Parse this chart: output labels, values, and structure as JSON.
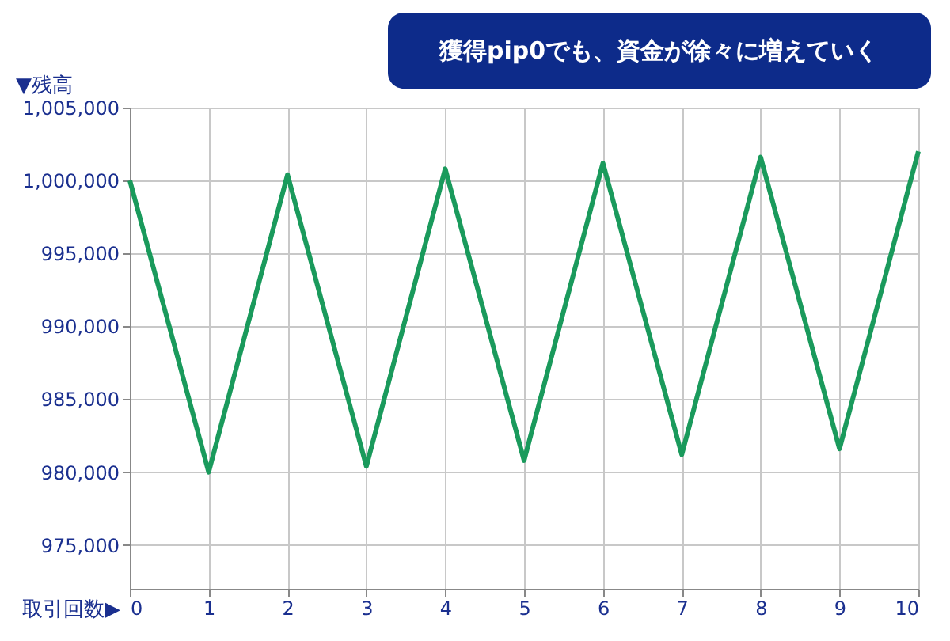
{
  "chart_data": {
    "type": "line",
    "xlabel": "取引回数▶",
    "ylabel": "▼残高",
    "x": [
      0,
      1,
      2,
      3,
      4,
      5,
      6,
      7,
      8,
      9,
      10
    ],
    "series": [
      {
        "color": "#1a9a5c",
        "values": [
          1000000,
          980000,
          1000400,
          980400,
          1000800,
          980800,
          1001200,
          981200,
          1001600,
          981600,
          1002000
        ]
      }
    ],
    "xlim": [
      0,
      10
    ],
    "xticks": [
      0,
      1,
      2,
      3,
      4,
      5,
      6,
      7,
      8,
      9,
      10
    ],
    "ylim": [
      972000,
      1005000
    ],
    "yticks": [
      {
        "value": 975000,
        "label": "975,000"
      },
      {
        "value": 980000,
        "label": "980,000"
      },
      {
        "value": 985000,
        "label": "985,000"
      },
      {
        "value": 990000,
        "label": "990,000"
      },
      {
        "value": 995000,
        "label": "995,000"
      },
      {
        "value": 1000000,
        "label": "1,000,000"
      },
      {
        "value": 1005000,
        "label": "1,005,000"
      }
    ],
    "grid": true,
    "marker": "none",
    "line_style": "solid",
    "annotations": [
      "獲得pip0でも、資金が徐々に増えていく"
    ]
  }
}
